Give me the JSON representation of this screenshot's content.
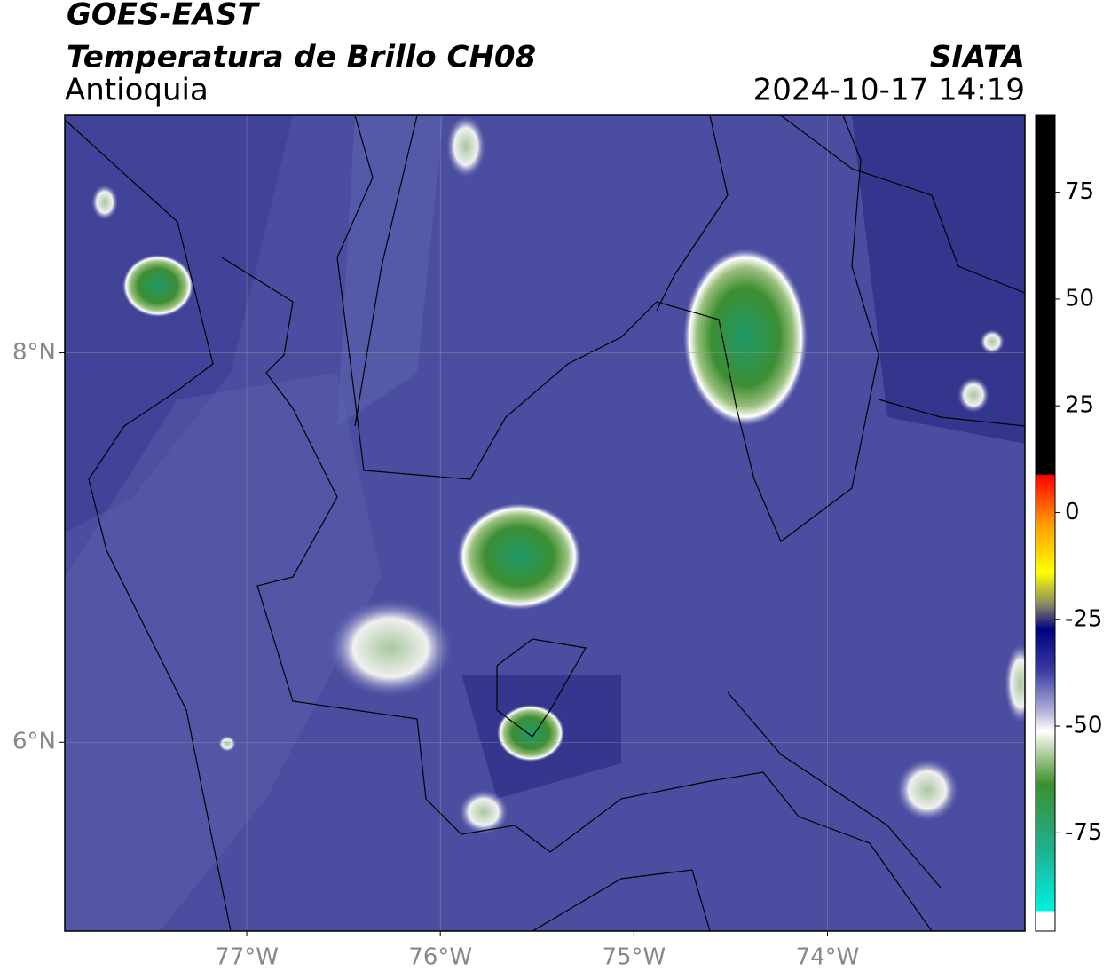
{
  "header": {
    "title": "GOES-EAST",
    "subtitle": "Temperatura de Brillo CH08",
    "region": "Antioquia",
    "source": "SIATA",
    "datetime": "2024-10-17 14:19"
  },
  "map": {
    "xlim": [
      -77.94,
      -72.98
    ],
    "ylim": [
      5.03,
      9.22
    ],
    "xticks": [
      {
        "value": -77,
        "label": "77°W"
      },
      {
        "value": -76,
        "label": "76°W"
      },
      {
        "value": -75,
        "label": "75°W"
      },
      {
        "value": -74,
        "label": "74°W"
      }
    ],
    "yticks": [
      {
        "value": 8,
        "label": "8°N"
      },
      {
        "value": 6,
        "label": "6°N"
      }
    ],
    "grid": true
  },
  "colorbar": {
    "lim": [
      -98,
      93
    ],
    "ticks": [
      75,
      50,
      25,
      0,
      -25,
      -50,
      -75
    ]
  }
}
